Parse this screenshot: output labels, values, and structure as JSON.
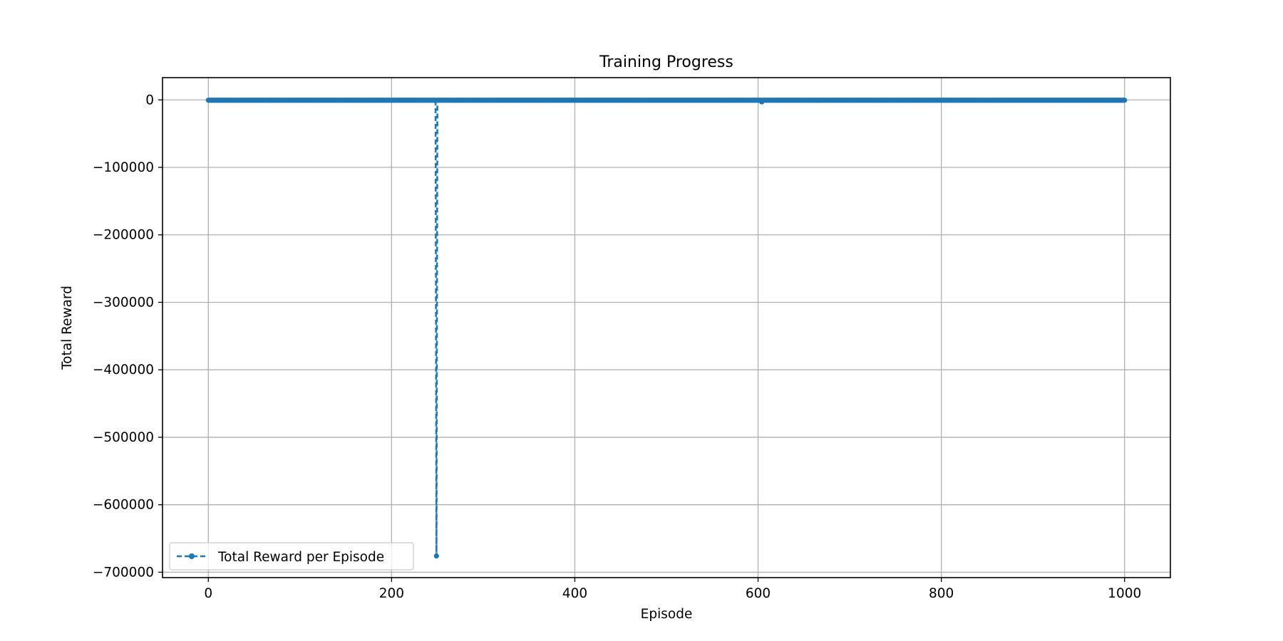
{
  "chart_data": {
    "type": "line",
    "title": "Training Progress",
    "xlabel": "Episode",
    "ylabel": "Total Reward",
    "xlim": [
      -50,
      1050
    ],
    "ylim": [
      -708000,
      33000
    ],
    "x_ticks": [
      0,
      200,
      400,
      600,
      800,
      1000
    ],
    "y_ticks": [
      0,
      -100000,
      -200000,
      -300000,
      -400000,
      -500000,
      -600000,
      -700000
    ],
    "x_tick_labels": [
      "0",
      "200",
      "400",
      "600",
      "800",
      "1000"
    ],
    "y_tick_labels": [
      "0",
      "−100000",
      "−200000",
      "−300000",
      "−400000",
      "−500000",
      "−600000",
      "−700000"
    ],
    "grid": true,
    "legend_position": "lower-left",
    "series": [
      {
        "name": "Total Reward per Episode",
        "color": "#1f77b4",
        "linestyle": "dashed",
        "marker": "dot",
        "episodes": [
          0,
          1000
        ],
        "baseline_reward": -500,
        "outliers": [
          {
            "episode": 249,
            "reward": -676000
          },
          {
            "episode": 604,
            "reward": -3000
          }
        ]
      }
    ]
  }
}
